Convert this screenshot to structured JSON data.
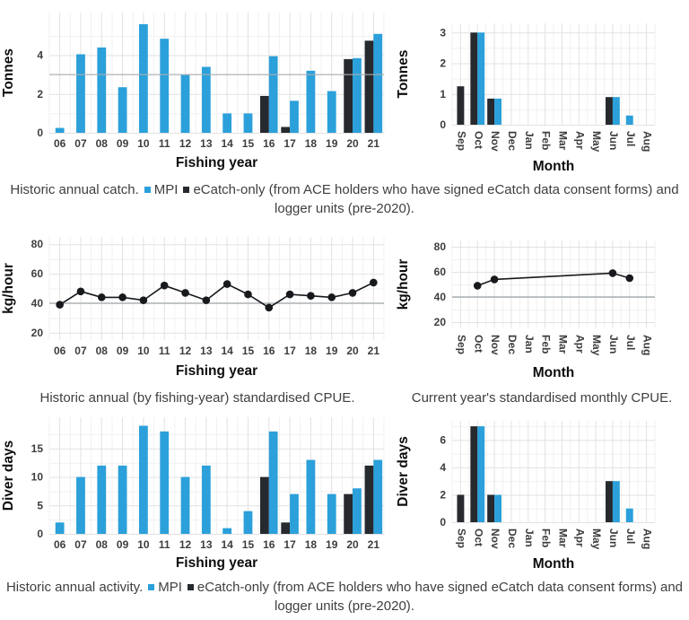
{
  "colors": {
    "mpi_blue": "#2ba0da",
    "ecatch_dark": "#26292e",
    "reference_line": "#aab0b4",
    "grid_major": "#e2e2e2",
    "grid_minor": "#f1f1f1",
    "line_series": "#17191c",
    "caption_text": "#3f3f3f"
  },
  "captions": {
    "annual_catch": {
      "prefix": "Historic annual catch.",
      "legend": [
        {
          "label": "MPI",
          "color": "#2ba0da"
        },
        {
          "label": "eCatch-only (from ACE holders who have signed eCatch data consent forms) and logger units (pre-2020).",
          "color": "#26292e"
        }
      ]
    },
    "annual_cpue": "Historic annual (by fishing-year) standardised CPUE.",
    "monthly_cpue": "Current year's standardised monthly CPUE.",
    "annual_activity": {
      "prefix": "Historic annual activity.",
      "legend": [
        {
          "label": "MPI",
          "color": "#2ba0da"
        },
        {
          "label": "eCatch-only (from ACE holders who have signed eCatch data consent forms) and logger units (pre-2020).",
          "color": "#26292e"
        }
      ]
    }
  },
  "chart_data": [
    {
      "id": "annual_catch_tonnes",
      "type": "bar",
      "xlabel": "Fishing year",
      "ylabel": "Tonnes",
      "categories": [
        "06",
        "07",
        "08",
        "09",
        "10",
        "11",
        "12",
        "13",
        "14",
        "15",
        "16",
        "17",
        "18",
        "19",
        "20",
        "21"
      ],
      "series": [
        {
          "name": "eCatch-only",
          "color": "#26292e",
          "values": [
            null,
            null,
            null,
            null,
            null,
            null,
            null,
            null,
            null,
            null,
            1.9,
            0.3,
            null,
            null,
            3.8,
            4.75
          ]
        },
        {
          "name": "MPI",
          "color": "#2ba0da",
          "values": [
            0.25,
            4.05,
            4.4,
            2.35,
            5.6,
            4.85,
            3.0,
            3.4,
            1.0,
            1.0,
            3.95,
            1.65,
            3.2,
            2.15,
            3.85,
            5.1
          ]
        }
      ],
      "ylim": [
        0,
        6.2
      ],
      "yticks": [
        0,
        2,
        4
      ],
      "yminor": [
        1,
        3,
        5
      ],
      "ref_line": 3,
      "rotate_x": false,
      "grid": true
    },
    {
      "id": "monthly_catch_tonnes",
      "type": "bar",
      "xlabel": "Month",
      "ylabel": "Tonnes",
      "categories": [
        "Sep",
        "Oct",
        "Nov",
        "Dec",
        "Jan",
        "Feb",
        "Mar",
        "Apr",
        "May",
        "Jun",
        "Jul",
        "Aug"
      ],
      "series": [
        {
          "name": "eCatch-only",
          "color": "#26292e",
          "values": [
            1.25,
            3.0,
            0.85,
            null,
            null,
            null,
            null,
            null,
            null,
            0.9,
            null,
            null
          ]
        },
        {
          "name": "MPI",
          "color": "#2ba0da",
          "values": [
            null,
            3.0,
            0.85,
            null,
            null,
            null,
            null,
            null,
            null,
            0.9,
            0.3,
            null
          ]
        }
      ],
      "ylim": [
        0,
        3.3
      ],
      "yticks": [
        0,
        1,
        2,
        3
      ],
      "yminor": [
        0.5,
        1.5,
        2.5
      ],
      "ref_line": null,
      "rotate_x": true,
      "grid": true
    },
    {
      "id": "annual_cpue",
      "type": "line",
      "xlabel": "Fishing year",
      "ylabel": "kg/hour",
      "categories": [
        "06",
        "07",
        "08",
        "09",
        "10",
        "11",
        "12",
        "13",
        "14",
        "15",
        "16",
        "17",
        "18",
        "19",
        "20",
        "21"
      ],
      "values": [
        39,
        48,
        44,
        44,
        42,
        52,
        47,
        42,
        53,
        46,
        37,
        46,
        45,
        44,
        47,
        54
      ],
      "ylim": [
        15,
        85
      ],
      "yticks": [
        20,
        40,
        60,
        80
      ],
      "yminor": [
        30,
        50,
        70
      ],
      "ref_line": 40,
      "rotate_x": false,
      "grid": true
    },
    {
      "id": "monthly_cpue",
      "type": "line",
      "xlabel": "Month",
      "ylabel": "kg/hour",
      "categories": [
        "Sep",
        "Oct",
        "Nov",
        "Dec",
        "Jan",
        "Feb",
        "Mar",
        "Apr",
        "May",
        "Jun",
        "Jul",
        "Aug"
      ],
      "values": [
        null,
        49,
        54,
        null,
        null,
        null,
        null,
        null,
        null,
        59,
        55,
        null
      ],
      "ylim": [
        15,
        85
      ],
      "yticks": [
        20,
        40,
        60,
        80
      ],
      "yminor": [
        30,
        50,
        70
      ],
      "ref_line": 40,
      "rotate_x": true,
      "grid": true
    },
    {
      "id": "annual_activity_diver_days",
      "type": "bar",
      "xlabel": "Fishing year",
      "ylabel": "Diver days",
      "categories": [
        "06",
        "07",
        "08",
        "09",
        "10",
        "11",
        "12",
        "13",
        "14",
        "15",
        "16",
        "17",
        "18",
        "19",
        "20",
        "21"
      ],
      "series": [
        {
          "name": "eCatch-only",
          "color": "#26292e",
          "values": [
            null,
            null,
            null,
            null,
            null,
            null,
            null,
            null,
            null,
            null,
            10,
            2,
            null,
            null,
            7,
            12
          ]
        },
        {
          "name": "MPI",
          "color": "#2ba0da",
          "values": [
            2,
            10,
            12,
            12,
            19,
            18,
            10,
            12,
            1,
            4,
            18,
            7,
            13,
            7,
            8,
            13
          ]
        }
      ],
      "ylim": [
        0,
        20.5
      ],
      "yticks": [
        0,
        5,
        10,
        15
      ],
      "yminor": [
        2.5,
        7.5,
        12.5,
        17.5
      ],
      "ref_line": null,
      "rotate_x": false,
      "grid": true
    },
    {
      "id": "monthly_activity_diver_days",
      "type": "bar",
      "xlabel": "Month",
      "ylabel": "Diver days",
      "categories": [
        "Sep",
        "Oct",
        "Nov",
        "Dec",
        "Jan",
        "Feb",
        "Mar",
        "Apr",
        "May",
        "Jun",
        "Jul",
        "Aug"
      ],
      "series": [
        {
          "name": "eCatch-only",
          "color": "#26292e",
          "values": [
            2,
            7,
            2,
            null,
            null,
            null,
            null,
            null,
            null,
            3,
            null,
            null
          ]
        },
        {
          "name": "MPI",
          "color": "#2ba0da",
          "values": [
            null,
            7,
            2,
            null,
            null,
            null,
            null,
            null,
            null,
            3,
            1,
            null
          ]
        }
      ],
      "ylim": [
        0,
        7.4
      ],
      "yticks": [
        0,
        2,
        4,
        6
      ],
      "yminor": [
        1,
        3,
        5,
        7
      ],
      "ref_line": null,
      "rotate_x": true,
      "grid": true
    }
  ]
}
